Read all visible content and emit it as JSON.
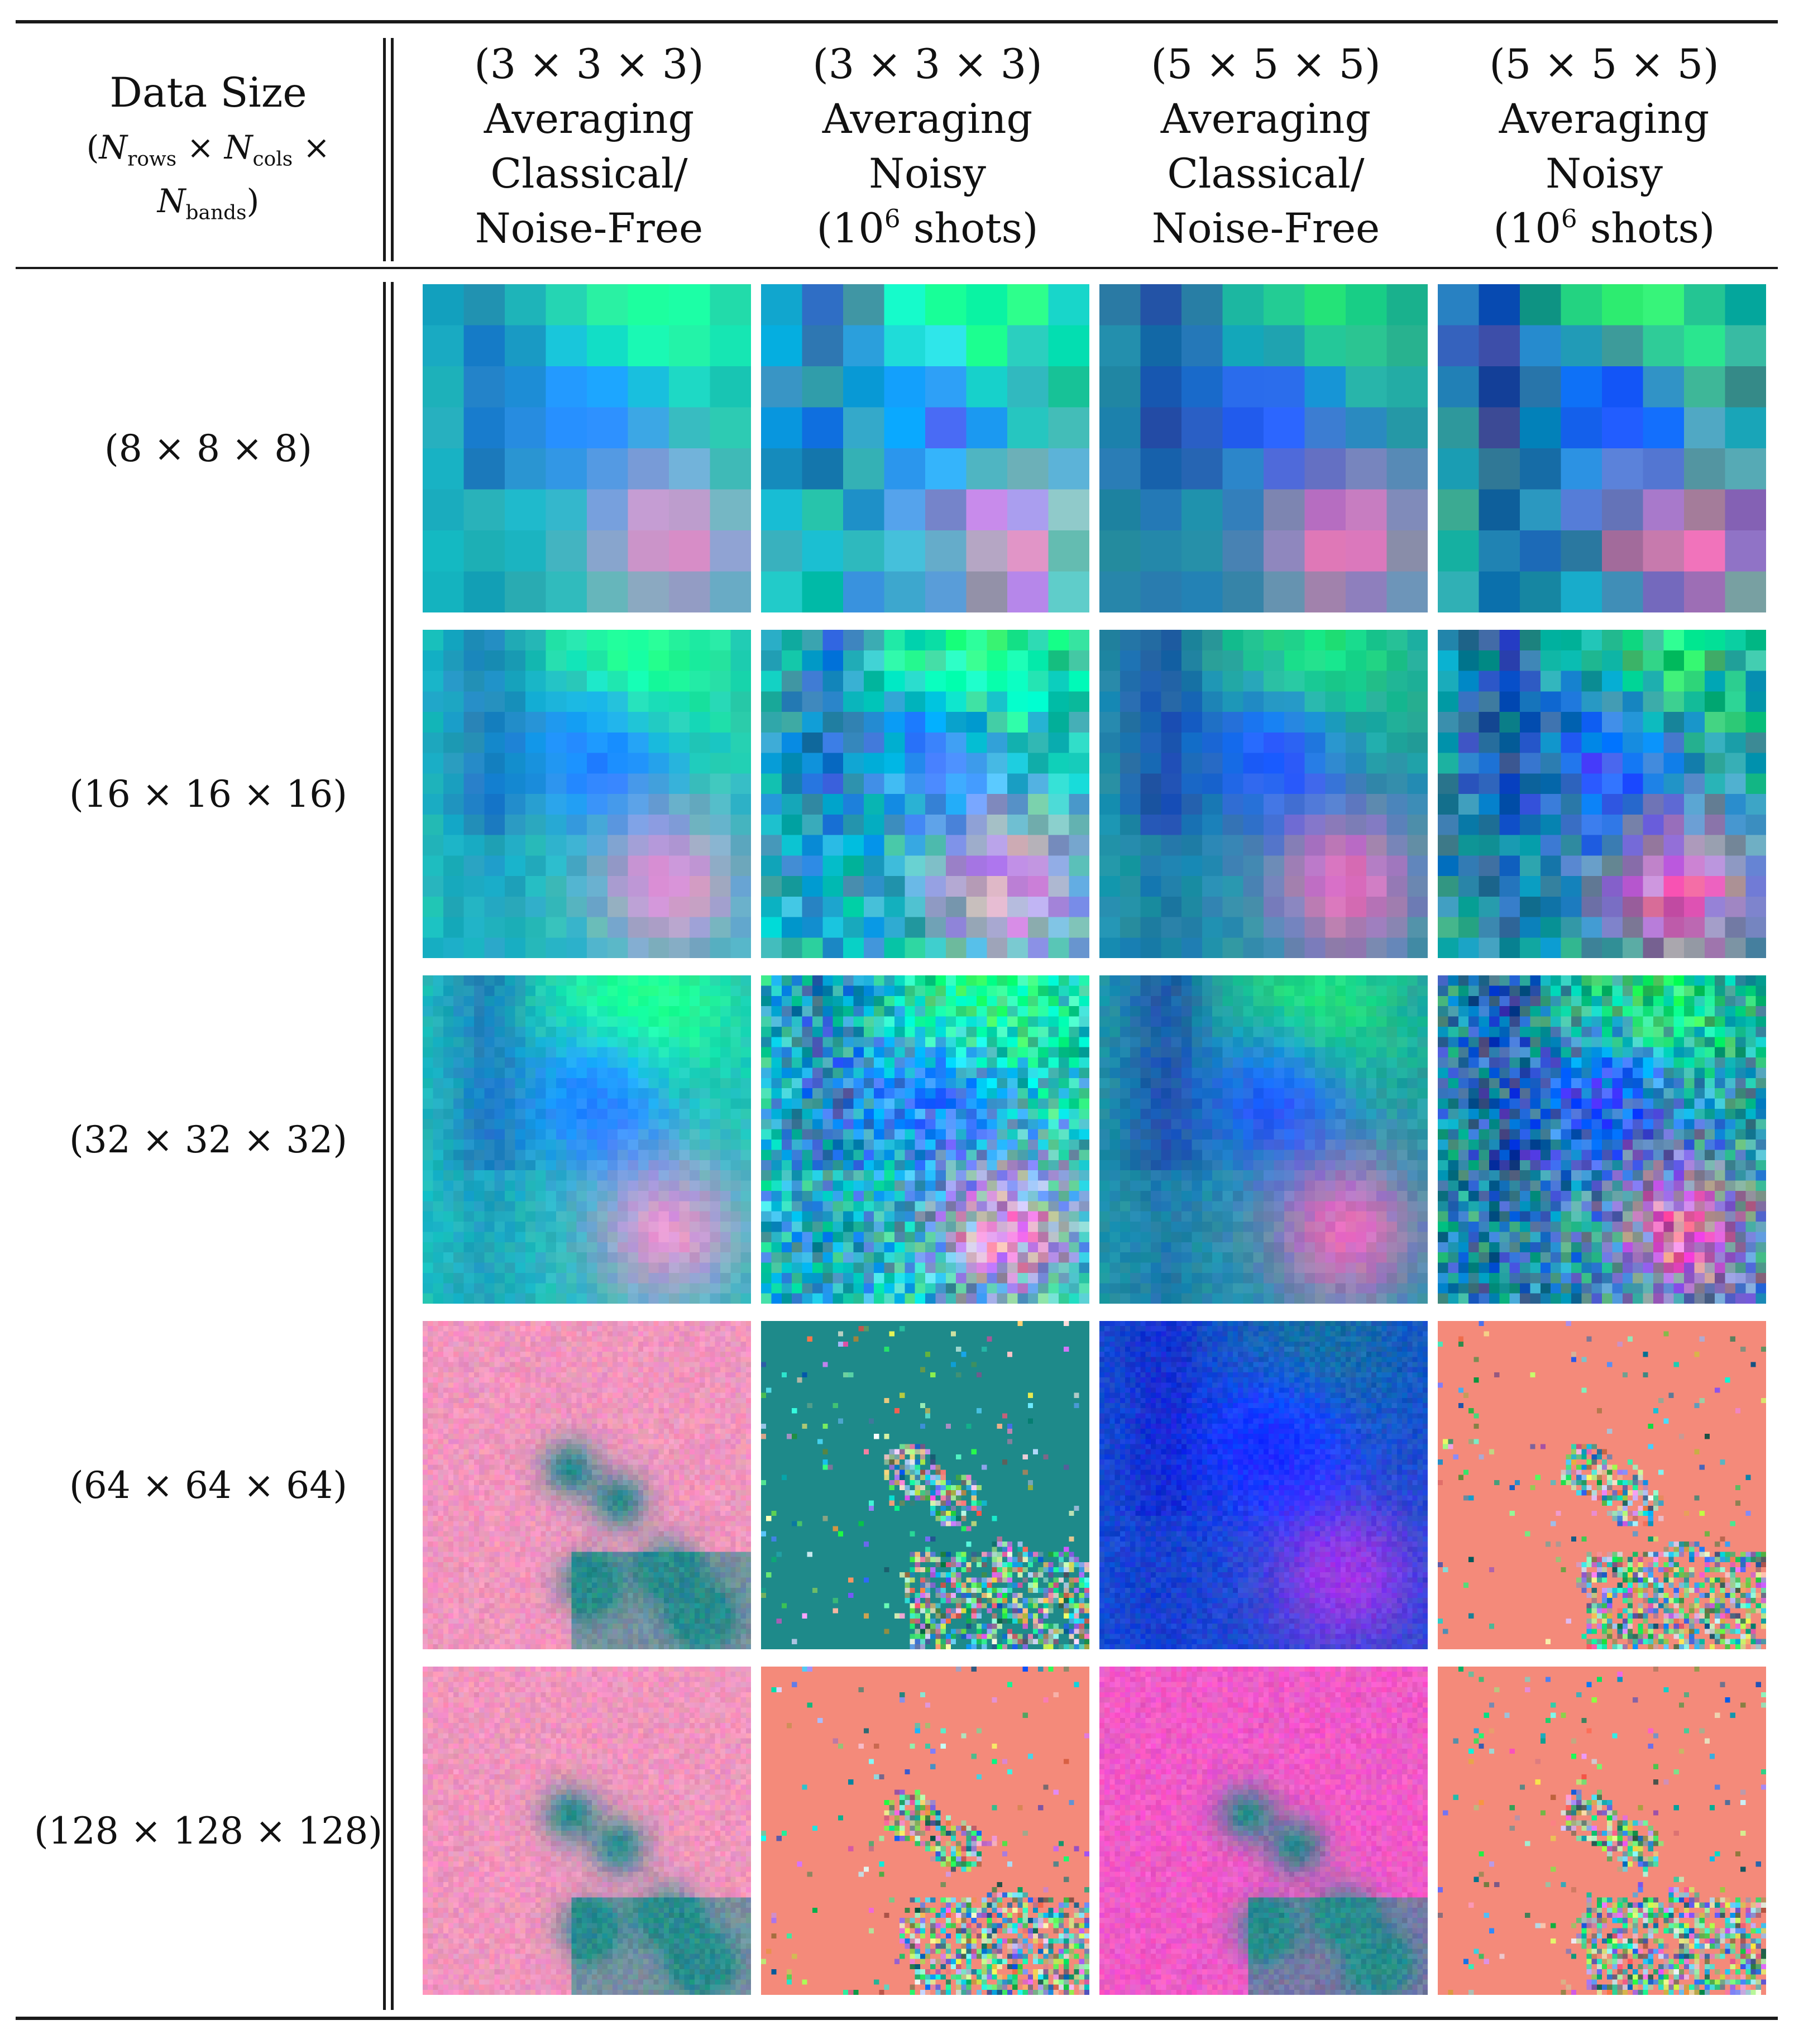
{
  "header": {
    "data_size": {
      "title": "Data Size",
      "paren_open": "(",
      "n1": "N",
      "sub_rows": "rows",
      "times1": " × ",
      "n2": "N",
      "sub_cols": "cols",
      "times2": " ×",
      "n3": "N",
      "sub_bands": "bands",
      "paren_close": ")"
    },
    "columns": [
      {
        "kernel": "(3 × 3 × 3)",
        "method": "Averaging",
        "line3": "Classical/",
        "line4": "Noise-Free"
      },
      {
        "kernel": "(3 × 3 × 3)",
        "method": "Averaging",
        "line3": "Noisy",
        "shots_prefix": "(10",
        "shots_exp": "6",
        "shots_suffix": " shots)"
      },
      {
        "kernel": "(5 × 5 × 5)",
        "method": "Averaging",
        "line3": "Classical/",
        "line4": "Noise-Free"
      },
      {
        "kernel": "(5 × 5 × 5)",
        "method": "Averaging",
        "line3": "Noisy",
        "shots_prefix": "(10",
        "shots_exp": "6",
        "shots_suffix": " shots)"
      }
    ]
  },
  "rows": [
    {
      "label": "(8 × 8 × 8)",
      "grid": 8
    },
    {
      "label": "(16 × 16 × 16)",
      "grid": 16
    },
    {
      "label": "(32 × 32 × 32)",
      "grid": 32
    },
    {
      "label": "(64 × 64 × 64)",
      "grid": 64
    },
    {
      "label": "(128 × 128 × 128)",
      "grid": 128
    }
  ],
  "colors": {
    "rule": "#1a1a1a",
    "salmon_bg": "#f48a7a",
    "teal_bg": "#1e8a8a",
    "pink_bg": "#f2a0d8"
  }
}
